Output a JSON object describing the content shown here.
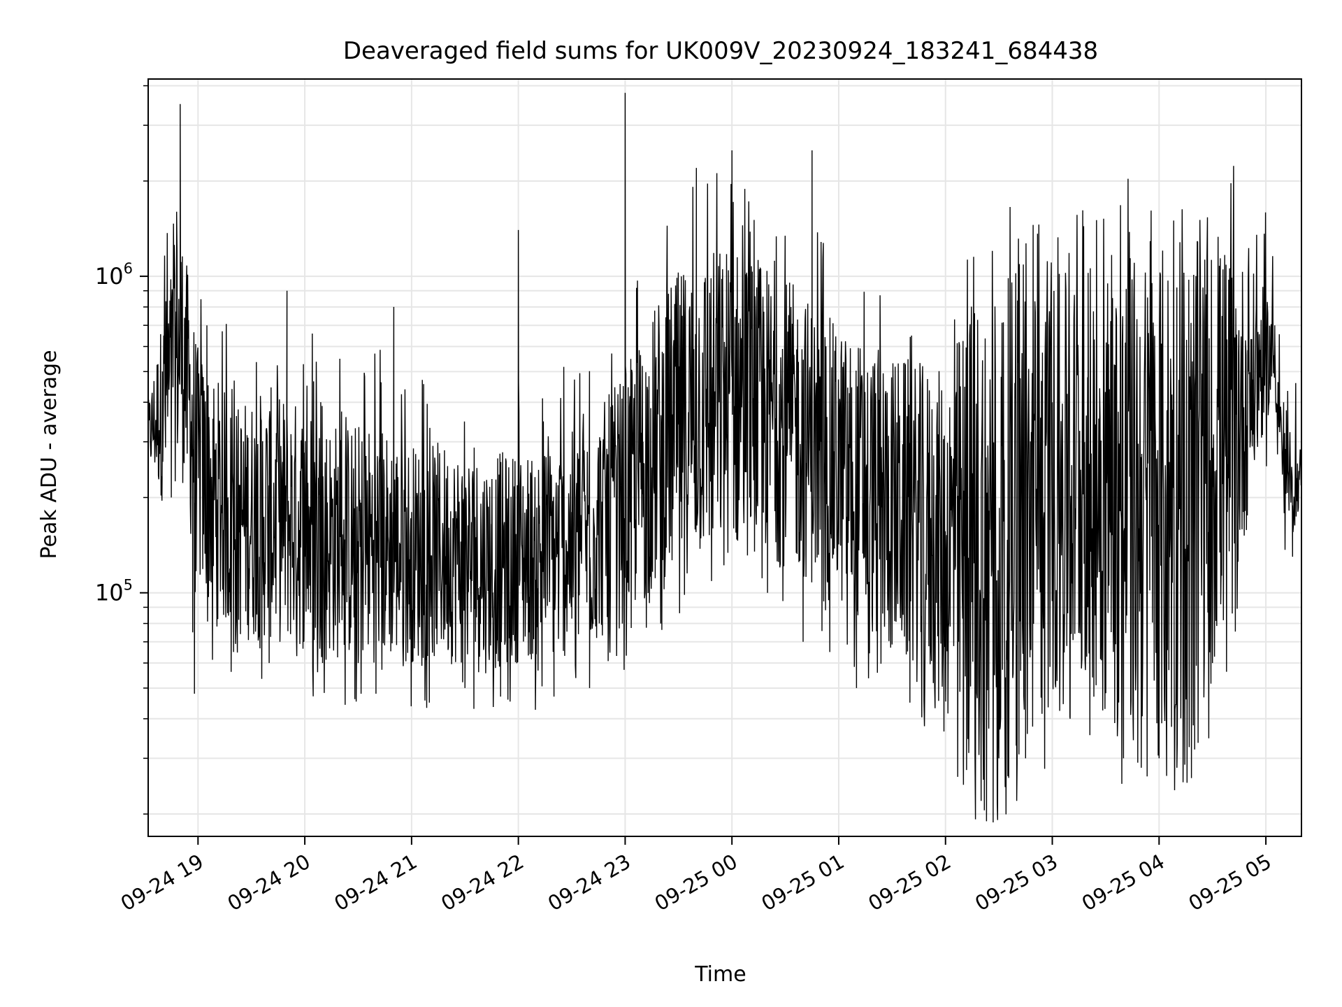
{
  "chart_data": {
    "type": "line",
    "title": "Deaveraged field sums for UK009V_20230924_183241_684438",
    "xlabel": "Time",
    "ylabel": "Peak ADU - average",
    "y_scale": "log",
    "ylim": [
      17000,
      4200000
    ],
    "xlim": [
      "2023-09-24 18:32",
      "2023-09-25 05:20"
    ],
    "x_ticks": [
      "2023-09-24 19:00",
      "2023-09-24 20:00",
      "2023-09-24 21:00",
      "2023-09-24 22:00",
      "2023-09-24 23:00",
      "2023-09-25 00:00",
      "2023-09-25 01:00",
      "2023-09-25 02:00",
      "2023-09-25 03:00",
      "2023-09-25 04:00",
      "2023-09-25 05:00"
    ],
    "x_tick_labels": [
      "09-24 19",
      "09-24 20",
      "09-24 21",
      "09-24 22",
      "09-24 23",
      "09-25 00",
      "09-25 01",
      "09-25 02",
      "09-25 03",
      "09-25 04",
      "09-25 05"
    ],
    "y_tick_labels": [
      {
        "base": "10",
        "exp": "5"
      },
      {
        "base": "10",
        "exp": "6"
      }
    ],
    "grid": true,
    "line_color": "#000000",
    "series": [
      {
        "points": [
          [
            "2023-09-24 18:32",
            300000
          ],
          [
            "2023-09-24 18:40",
            500000
          ],
          [
            "2023-09-24 18:45",
            200000
          ],
          [
            "2023-09-24 18:48",
            1600000
          ],
          [
            "2023-09-24 18:50",
            3500000
          ],
          [
            "2023-09-24 18:53",
            800000
          ],
          [
            "2023-09-24 18:57",
            75000
          ],
          [
            "2023-09-24 18:58",
            48000
          ],
          [
            "2023-09-24 19:05",
            700000
          ],
          [
            "2023-09-24 19:10",
            150000
          ],
          [
            "2023-09-24 19:20",
            65000
          ],
          [
            "2023-09-24 19:30",
            200000
          ],
          [
            "2023-09-24 19:40",
            60000
          ],
          [
            "2023-09-24 19:50",
            900000
          ],
          [
            "2023-09-24 20:00",
            130000
          ],
          [
            "2023-09-24 20:10",
            60000
          ],
          [
            "2023-09-24 20:20",
            150000
          ],
          [
            "2023-09-24 20:30",
            60000
          ],
          [
            "2023-09-24 20:40",
            48000
          ],
          [
            "2023-09-24 20:50",
            800000
          ],
          [
            "2023-09-24 21:00",
            180000
          ],
          [
            "2023-09-24 21:10",
            45000
          ],
          [
            "2023-09-24 21:20",
            150000
          ],
          [
            "2023-09-24 21:30",
            50000
          ],
          [
            "2023-09-24 21:35",
            43000
          ],
          [
            "2023-09-24 21:45",
            150000
          ],
          [
            "2023-09-24 21:50",
            47000
          ],
          [
            "2023-09-24 22:00",
            1400000
          ],
          [
            "2023-09-24 22:10",
            110000
          ],
          [
            "2023-09-24 22:20",
            47000
          ],
          [
            "2023-09-24 22:30",
            180000
          ],
          [
            "2023-09-24 22:40",
            50000
          ],
          [
            "2023-09-24 22:50",
            200000
          ],
          [
            "2023-09-24 23:00",
            3800000
          ],
          [
            "2023-09-24 23:10",
            300000
          ],
          [
            "2023-09-24 23:20",
            80000
          ],
          [
            "2023-09-24 23:30",
            600000
          ],
          [
            "2023-09-24 23:40",
            2200000
          ],
          [
            "2023-09-24 23:50",
            300000
          ],
          [
            "2023-09-25 00:00",
            2500000
          ],
          [
            "2023-09-25 00:10",
            200000
          ],
          [
            "2023-09-25 00:20",
            100000
          ],
          [
            "2023-09-25 00:30",
            400000
          ],
          [
            "2023-09-25 00:40",
            70000
          ],
          [
            "2023-09-25 00:45",
            2500000
          ],
          [
            "2023-09-25 00:50",
            300000
          ],
          [
            "2023-09-25 00:55",
            65000
          ],
          [
            "2023-09-25 01:00",
            300000
          ],
          [
            "2023-09-25 01:10",
            50000
          ],
          [
            "2023-09-25 01:20",
            500000
          ],
          [
            "2023-09-25 01:30",
            80000
          ],
          [
            "2023-09-25 01:40",
            45000
          ],
          [
            "2023-09-25 01:50",
            300000
          ],
          [
            "2023-09-25 02:00",
            60000
          ],
          [
            "2023-09-25 02:10",
            30000
          ],
          [
            "2023-09-25 02:20",
            22000
          ],
          [
            "2023-09-25 02:30",
            30000
          ],
          [
            "2023-09-25 02:40",
            22000
          ],
          [
            "2023-09-25 02:45",
            30000
          ],
          [
            "2023-09-25 02:50",
            350000
          ],
          [
            "2023-09-25 03:00",
            400000
          ],
          [
            "2023-09-25 03:10",
            40000
          ],
          [
            "2023-09-25 03:20",
            90000
          ],
          [
            "2023-09-25 03:30",
            400000
          ],
          [
            "2023-09-25 03:40",
            30000
          ],
          [
            "2023-09-25 03:50",
            28000
          ],
          [
            "2023-09-25 04:00",
            30000
          ],
          [
            "2023-09-25 04:10",
            28000
          ],
          [
            "2023-09-25 04:20",
            32000
          ],
          [
            "2023-09-25 04:30",
            60000
          ],
          [
            "2023-09-25 04:40",
            200000
          ],
          [
            "2023-09-25 04:50",
            500000
          ],
          [
            "2023-09-25 05:00",
            700000
          ],
          [
            "2023-09-25 05:05",
            700000
          ],
          [
            "2023-09-25 05:10",
            400000
          ],
          [
            "2023-09-25 05:15",
            130000
          ],
          [
            "2023-09-25 05:20",
            250000
          ]
        ],
        "envelope": [
          [
            "2023-09-24 18:32",
            250000,
            400000
          ],
          [
            "2023-09-24 18:42",
            180000,
            900000
          ],
          [
            "2023-09-24 18:50",
            250000,
            1600000
          ],
          [
            "2023-09-24 19:00",
            100000,
            600000
          ],
          [
            "2023-09-24 19:20",
            70000,
            400000
          ],
          [
            "2023-09-24 19:40",
            70000,
            450000
          ],
          [
            "2023-09-24 20:00",
            65000,
            400000
          ],
          [
            "2023-09-24 20:20",
            60000,
            350000
          ],
          [
            "2023-09-24 20:40",
            60000,
            350000
          ],
          [
            "2023-09-24 21:00",
            60000,
            300000
          ],
          [
            "2023-09-24 21:20",
            60000,
            300000
          ],
          [
            "2023-09-24 21:40",
            55000,
            280000
          ],
          [
            "2023-09-24 22:00",
            60000,
            280000
          ],
          [
            "2023-09-24 22:20",
            60000,
            300000
          ],
          [
            "2023-09-24 22:40",
            65000,
            350000
          ],
          [
            "2023-09-24 23:00",
            80000,
            500000
          ],
          [
            "2023-09-24 23:20",
            100000,
            900000
          ],
          [
            "2023-09-24 23:40",
            120000,
            1200000
          ],
          [
            "2023-09-25 00:00",
            130000,
            1300000
          ],
          [
            "2023-09-25 00:20",
            130000,
            1100000
          ],
          [
            "2023-09-25 00:40",
            110000,
            900000
          ],
          [
            "2023-09-25 01:00",
            90000,
            700000
          ],
          [
            "2023-09-25 01:20",
            70000,
            600000
          ],
          [
            "2023-09-25 01:40",
            55000,
            550000
          ],
          [
            "2023-09-25 02:00",
            40000,
            500000
          ],
          [
            "2023-09-25 02:15",
            26000,
            900000
          ],
          [
            "2023-09-25 02:30",
            25000,
            1000000
          ],
          [
            "2023-09-25 02:45",
            27000,
            1000000
          ],
          [
            "2023-09-25 03:00",
            45000,
            1000000
          ],
          [
            "2023-09-25 03:20",
            50000,
            1100000
          ],
          [
            "2023-09-25 03:40",
            30000,
            1200000
          ],
          [
            "2023-09-25 04:00",
            30000,
            1250000
          ],
          [
            "2023-09-25 04:20",
            35000,
            1300000
          ],
          [
            "2023-09-25 04:40",
            80000,
            1300000
          ],
          [
            "2023-09-25 05:00",
            350000,
            900000
          ],
          [
            "2023-09-25 05:05",
            400000,
            800000
          ],
          [
            "2023-09-25 05:10",
            200000,
            300000
          ],
          [
            "2023-09-25 05:15",
            150000,
            250000
          ],
          [
            "2023-09-25 05:20",
            200000,
            300000
          ]
        ]
      }
    ]
  }
}
